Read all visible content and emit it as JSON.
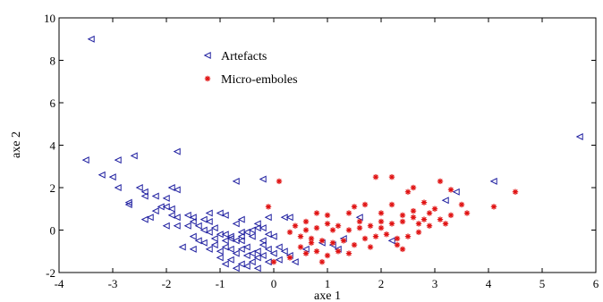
{
  "chart_data": {
    "type": "scatter",
    "title": "",
    "xlabel": "axe 1",
    "ylabel": "axe 2",
    "xlim": [
      -4,
      6
    ],
    "ylim": [
      -2,
      10
    ],
    "x_ticks": [
      -4,
      -3,
      -2,
      -1,
      0,
      1,
      2,
      3,
      4,
      5,
      6
    ],
    "y_ticks": [
      -2,
      0,
      2,
      4,
      6,
      8,
      10
    ],
    "grid": false,
    "legend_position": "upper-left-center",
    "series": [
      {
        "name": "Artefacts",
        "marker": "triangle-left",
        "color": "#1f1fa0",
        "points": [
          [
            -3.4,
            9.0
          ],
          [
            5.7,
            4.4
          ],
          [
            -3.5,
            3.3
          ],
          [
            -3.2,
            2.6
          ],
          [
            -3.0,
            2.5
          ],
          [
            -2.9,
            3.3
          ],
          [
            -2.6,
            3.5
          ],
          [
            -1.8,
            3.7
          ],
          [
            -2.9,
            2.0
          ],
          [
            -2.5,
            2.0
          ],
          [
            -2.4,
            1.8
          ],
          [
            -1.9,
            2.0
          ],
          [
            -1.8,
            1.9
          ],
          [
            -0.7,
            2.3
          ],
          [
            -0.2,
            2.4
          ],
          [
            4.1,
            2.3
          ],
          [
            3.4,
            1.8
          ],
          [
            3.2,
            1.4
          ],
          [
            -2.2,
            1.6
          ],
          [
            -2.0,
            1.5
          ],
          [
            -2.4,
            1.6
          ],
          [
            -2.7,
            1.3
          ],
          [
            -2.7,
            1.2
          ],
          [
            -2.0,
            1.1
          ],
          [
            -1.9,
            1.0
          ],
          [
            -2.1,
            1.1
          ],
          [
            -2.2,
            0.9
          ],
          [
            -2.3,
            0.6
          ],
          [
            -2.4,
            0.5
          ],
          [
            -1.8,
            0.6
          ],
          [
            -1.6,
            0.7
          ],
          [
            -1.5,
            0.6
          ],
          [
            -1.5,
            0.4
          ],
          [
            -1.3,
            0.5
          ],
          [
            -1.2,
            0.8
          ],
          [
            -1.0,
            0.8
          ],
          [
            -0.9,
            0.7
          ],
          [
            -0.6,
            0.5
          ],
          [
            -0.3,
            0.3
          ],
          [
            -0.1,
            0.6
          ],
          [
            0.2,
            0.6
          ],
          [
            0.3,
            0.6
          ],
          [
            1.6,
            0.6
          ],
          [
            -2.0,
            0.2
          ],
          [
            -1.8,
            0.2
          ],
          [
            -1.6,
            0.2
          ],
          [
            -1.4,
            0.2
          ],
          [
            -1.3,
            0.0
          ],
          [
            -1.2,
            -0.1
          ],
          [
            -1.1,
            0.1
          ],
          [
            -1.0,
            -0.2
          ],
          [
            -0.9,
            -0.2
          ],
          [
            -0.8,
            -0.3
          ],
          [
            -0.8,
            -0.4
          ],
          [
            -0.7,
            -0.5
          ],
          [
            -0.6,
            -0.3
          ],
          [
            -0.5,
            -0.1
          ],
          [
            -0.4,
            0.0
          ],
          [
            -0.3,
            0.1
          ],
          [
            -0.2,
            0.1
          ],
          [
            -0.1,
            -0.2
          ],
          [
            0.0,
            -0.3
          ],
          [
            -1.5,
            -0.3
          ],
          [
            -1.4,
            -0.5
          ],
          [
            -1.7,
            -0.8
          ],
          [
            -1.2,
            -0.9
          ],
          [
            -1.1,
            -0.7
          ],
          [
            -1.0,
            -1.0
          ],
          [
            -0.9,
            -0.8
          ],
          [
            -0.8,
            -0.9
          ],
          [
            -0.7,
            -1.1
          ],
          [
            -0.6,
            -0.9
          ],
          [
            -0.5,
            -0.8
          ],
          [
            -0.5,
            -1.2
          ],
          [
            -0.4,
            -1.1
          ],
          [
            -0.3,
            -1.0
          ],
          [
            -0.3,
            -1.3
          ],
          [
            -0.2,
            -0.7
          ],
          [
            -0.1,
            -0.9
          ],
          [
            0.0,
            -1.1
          ],
          [
            0.1,
            -0.8
          ],
          [
            0.2,
            -1.0
          ],
          [
            0.3,
            -1.2
          ],
          [
            0.4,
            -1.5
          ],
          [
            0.1,
            -1.4
          ],
          [
            -0.4,
            -1.5
          ],
          [
            -0.6,
            -1.6
          ],
          [
            -0.8,
            -1.4
          ],
          [
            -1.0,
            -1.3
          ],
          [
            -0.9,
            -1.6
          ],
          [
            -0.7,
            -1.8
          ],
          [
            -0.5,
            -1.7
          ],
          [
            -0.3,
            -1.8
          ],
          [
            -0.1,
            -1.5
          ],
          [
            -0.2,
            -1.2
          ],
          [
            -0.6,
            -0.5
          ],
          [
            -1.3,
            -0.6
          ],
          [
            -1.5,
            -0.9
          ],
          [
            0.6,
            -0.9
          ],
          [
            0.9,
            -0.6
          ],
          [
            1.1,
            -0.7
          ],
          [
            1.2,
            -0.9
          ],
          [
            1.3,
            -0.4
          ],
          [
            2.2,
            -0.5
          ],
          [
            -1.9,
            0.7
          ],
          [
            -1.2,
            0.4
          ],
          [
            -0.7,
            0.3
          ],
          [
            -0.4,
            -0.3
          ],
          [
            -0.2,
            -0.5
          ],
          [
            -0.6,
            -0.1
          ],
          [
            -1.1,
            -0.4
          ],
          [
            -0.9,
            -0.5
          ]
        ]
      },
      {
        "name": "Micro-emboles",
        "marker": "star",
        "color": "#e01010",
        "points": [
          [
            0.1,
            2.3
          ],
          [
            1.9,
            2.5
          ],
          [
            2.2,
            2.5
          ],
          [
            2.6,
            2.0
          ],
          [
            3.1,
            2.3
          ],
          [
            4.5,
            1.8
          ],
          [
            2.5,
            1.8
          ],
          [
            3.3,
            1.9
          ],
          [
            2.8,
            1.3
          ],
          [
            3.5,
            1.2
          ],
          [
            4.1,
            1.1
          ],
          [
            1.5,
            1.1
          ],
          [
            1.7,
            1.2
          ],
          [
            1.4,
            0.8
          ],
          [
            0.8,
            0.8
          ],
          [
            1.0,
            0.7
          ],
          [
            2.0,
            0.8
          ],
          [
            2.2,
            1.2
          ],
          [
            2.4,
            0.7
          ],
          [
            2.6,
            0.6
          ],
          [
            2.9,
            0.8
          ],
          [
            3.1,
            0.5
          ],
          [
            3.3,
            0.7
          ],
          [
            3.6,
            0.8
          ],
          [
            3.2,
            0.3
          ],
          [
            2.9,
            0.2
          ],
          [
            2.7,
            0.3
          ],
          [
            2.4,
            0.4
          ],
          [
            2.2,
            0.3
          ],
          [
            2.0,
            0.4
          ],
          [
            1.8,
            0.2
          ],
          [
            1.6,
            0.1
          ],
          [
            1.4,
            0.0
          ],
          [
            1.2,
            0.2
          ],
          [
            1.0,
            0.3
          ],
          [
            0.8,
            0.1
          ],
          [
            0.6,
            0.0
          ],
          [
            0.4,
            0.2
          ],
          [
            0.3,
            -0.1
          ],
          [
            0.5,
            -0.3
          ],
          [
            0.7,
            -0.4
          ],
          [
            0.9,
            -0.5
          ],
          [
            1.1,
            -0.6
          ],
          [
            1.3,
            -0.5
          ],
          [
            1.5,
            -0.7
          ],
          [
            1.7,
            -0.4
          ],
          [
            1.9,
            -0.3
          ],
          [
            2.1,
            -0.2
          ],
          [
            2.3,
            -0.4
          ],
          [
            2.5,
            -0.3
          ],
          [
            2.7,
            -0.1
          ],
          [
            0.5,
            -0.8
          ],
          [
            0.6,
            -1.1
          ],
          [
            0.8,
            -1.0
          ],
          [
            1.0,
            -1.2
          ],
          [
            1.2,
            -1.0
          ],
          [
            0.9,
            -1.5
          ],
          [
            0.3,
            -1.3
          ],
          [
            0.0,
            -1.5
          ],
          [
            -0.1,
            1.1
          ],
          [
            0.6,
            0.4
          ],
          [
            1.6,
            0.4
          ],
          [
            2.3,
            -0.7
          ],
          [
            2.4,
            -0.9
          ],
          [
            1.8,
            -0.8
          ],
          [
            1.4,
            -1.1
          ],
          [
            0.7,
            -0.6
          ],
          [
            1.1,
            0.0
          ],
          [
            2.0,
            0.1
          ],
          [
            2.8,
            0.5
          ],
          [
            3.0,
            1.0
          ],
          [
            2.6,
            0.9
          ]
        ]
      }
    ]
  }
}
